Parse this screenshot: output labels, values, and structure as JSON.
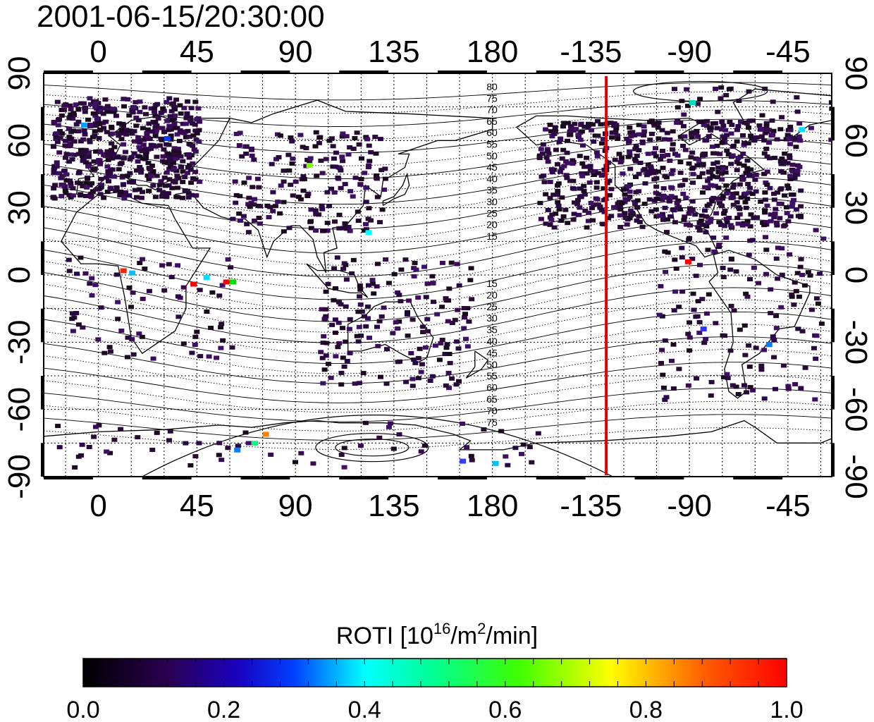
{
  "title": "2001-06-15/20:30:00",
  "map": {
    "top_axis_labels": [
      "0",
      "45",
      "90",
      "135",
      "180",
      "-135",
      "-90",
      "-45"
    ],
    "bottom_axis_labels": [
      "0",
      "45",
      "90",
      "135",
      "180",
      "-135",
      "-90",
      "-45"
    ],
    "left_axis_labels": [
      "90",
      "60",
      "30",
      "0",
      "-30",
      "-60",
      "-90"
    ],
    "right_axis_labels": [
      "90",
      "60",
      "30",
      "0",
      "-30",
      "-60",
      "-90"
    ],
    "north_contour_labels": [
      "80",
      "75",
      "70",
      "65",
      "60",
      "55",
      "50",
      "45",
      "40",
      "35",
      "30",
      "25",
      "20",
      "15"
    ],
    "south_contour_labels": [
      "15",
      "20",
      "25",
      "30",
      "35",
      "40",
      "45",
      "50",
      "55",
      "60",
      "65",
      "70",
      "75"
    ],
    "marker_line_longitude": -128,
    "marker_line_color": "#e00000"
  },
  "colorbar": {
    "label_prefix": "ROTI  [10",
    "label_sup1": "16",
    "label_mid": "/m",
    "label_sup2": "2",
    "label_suffix": "/min]",
    "ticks": [
      "0.0",
      "0.2",
      "0.4",
      "0.6",
      "0.8",
      "1.0"
    ],
    "range": [
      0.0,
      1.0
    ],
    "colors": [
      "#000000",
      "#3a005a",
      "#0000ff",
      "#00e0ff",
      "#00ff00",
      "#ffff00",
      "#ff0000"
    ]
  }
}
